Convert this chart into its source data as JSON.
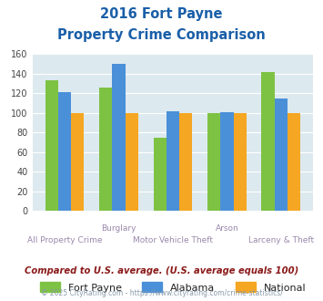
{
  "title_line1": "2016 Fort Payne",
  "title_line2": "Property Crime Comparison",
  "categories": [
    "All Property Crime",
    "Burglary",
    "Motor Vehicle Theft",
    "Arson",
    "Larceny & Theft"
  ],
  "fort_payne": [
    133,
    126,
    75,
    100,
    142
  ],
  "alabama": [
    121,
    150,
    102,
    101,
    115
  ],
  "national": [
    100,
    100,
    100,
    100,
    100
  ],
  "colors": {
    "fort_payne": "#7dc243",
    "alabama": "#4a90d9",
    "national": "#f5a623"
  },
  "ylim": [
    0,
    160
  ],
  "yticks": [
    0,
    20,
    40,
    60,
    80,
    100,
    120,
    140,
    160
  ],
  "background_color": "#dce9ef",
  "legend_labels": [
    "Fort Payne",
    "Alabama",
    "National"
  ],
  "footnote1": "Compared to U.S. average. (U.S. average equals 100)",
  "footnote2": "© 2025 CityRating.com - https://www.cityrating.com/crime-statistics/",
  "title_color": "#1a5fa8",
  "footnote1_color": "#8b1a1a",
  "footnote2_color": "#8899aa",
  "xlabel_color": "#9988aa",
  "top_xlabels": {
    "1": "Burglary",
    "3": "Arson"
  },
  "bottom_xlabels": {
    "0": "All Property Crime",
    "2": "Motor Vehicle Theft",
    "4": "Larceny & Theft"
  }
}
